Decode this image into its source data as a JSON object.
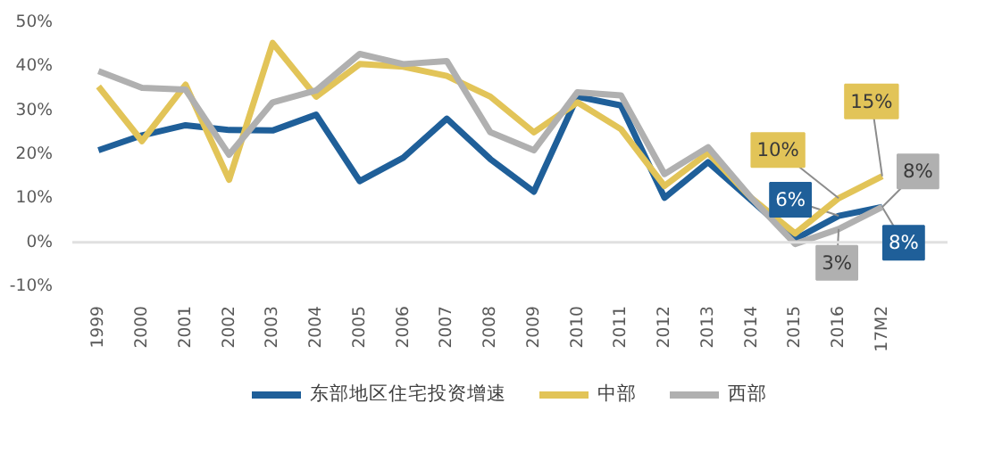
{
  "chart_data": {
    "type": "line",
    "categories": [
      "1999",
      "2000",
      "2001",
      "2002",
      "2003",
      "2004",
      "2005",
      "2006",
      "2007",
      "2008",
      "2009",
      "2010",
      "2011",
      "2012",
      "2013",
      "2014",
      "2015",
      "2016",
      "17M2"
    ],
    "series": [
      {
        "name": "东部地区住宅投资增速",
        "color": "#1f5f99",
        "values": [
          20.9,
          24.3,
          26.6,
          25.5,
          25.4,
          29,
          13.9,
          19.2,
          28.1,
          18.9,
          11.5,
          33.1,
          31.1,
          10.1,
          18.2,
          9.5,
          0.7,
          6,
          8
        ],
        "value_labels": [
          null,
          null,
          null,
          null,
          null,
          null,
          null,
          null,
          null,
          null,
          null,
          null,
          null,
          null,
          null,
          null,
          null,
          "6%",
          "8%"
        ]
      },
      {
        "name": "中部",
        "color": "#e2c458",
        "values": [
          35.4,
          23,
          35.8,
          14.2,
          45.3,
          33.1,
          40.5,
          39.9,
          37.8,
          33.1,
          25,
          31.8,
          25.7,
          12.8,
          20.3,
          10,
          2,
          10,
          15
        ],
        "value_labels": [
          null,
          null,
          null,
          null,
          null,
          null,
          null,
          null,
          null,
          null,
          null,
          null,
          null,
          null,
          null,
          null,
          null,
          "10%",
          "15%"
        ]
      },
      {
        "name": "西部",
        "color": "#b0b0b0",
        "values": [
          38.9,
          35.1,
          34.7,
          19.9,
          31.8,
          34.5,
          42.8,
          40.5,
          41.2,
          25,
          20.9,
          34.1,
          33.4,
          15.5,
          21.6,
          10,
          -0.4,
          3,
          8
        ],
        "value_labels": [
          null,
          null,
          null,
          null,
          null,
          null,
          null,
          null,
          null,
          null,
          null,
          null,
          null,
          null,
          null,
          null,
          null,
          "3%",
          "8%"
        ]
      }
    ],
    "ylim": [
      -10,
      50
    ],
    "yticks": [
      {
        "value": -10,
        "label": "-10%"
      },
      {
        "value": 0,
        "label": "0%"
      },
      {
        "value": 10,
        "label": "10%"
      },
      {
        "value": 20,
        "label": "20%"
      },
      {
        "value": 30,
        "label": "30%"
      },
      {
        "value": 40,
        "label": "40%"
      },
      {
        "value": 50,
        "label": "50%"
      }
    ],
    "ref_lines": [
      {
        "axis": "y",
        "value": 0,
        "color": "#e0e0e0"
      }
    ],
    "grid": false,
    "legend": "bottom",
    "marker": "none",
    "line_style": "solid"
  }
}
